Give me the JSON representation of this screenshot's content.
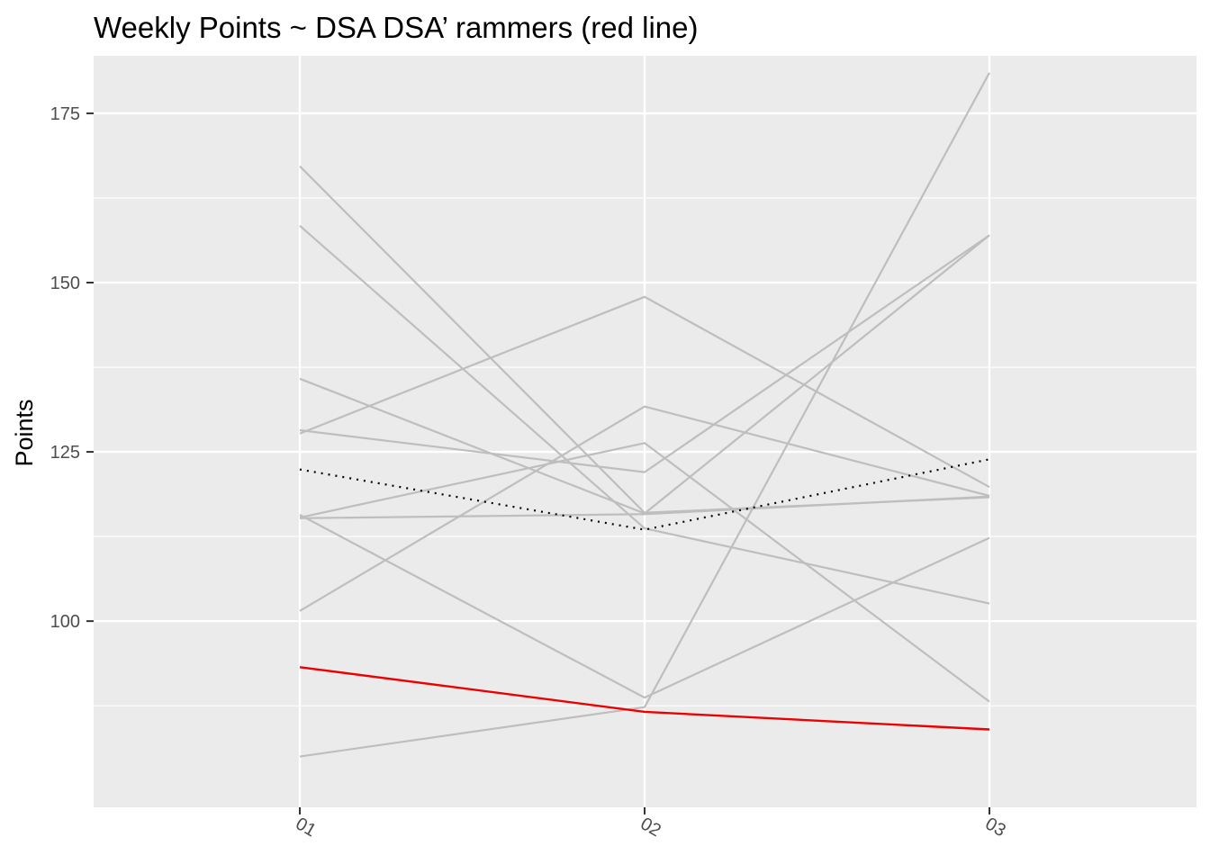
{
  "chart_data": {
    "type": "line",
    "title": "Weekly Points ~ DSA DSA’ rammers (red line)",
    "xlabel": "",
    "ylabel": "Points",
    "categories": [
      "01",
      "02",
      "03"
    ],
    "ylim": [
      72.5,
      183.5
    ],
    "y_ticks": [
      100,
      125,
      150,
      175
    ],
    "grid": true,
    "legend": "none",
    "colors": {
      "panel": "#ebebeb",
      "grid": "#ffffff",
      "other": "#bebebe",
      "highlight": "#ee0000",
      "average": "#000000"
    },
    "series": [
      {
        "values": [
          167.2,
          116.0,
          118.3
        ],
        "role": "other"
      },
      {
        "values": [
          158.4,
          113.7,
          102.6
        ],
        "role": "other"
      },
      {
        "values": [
          135.8,
          115.9,
          157.0
        ],
        "role": "other"
      },
      {
        "values": [
          127.7,
          147.9,
          119.8
        ],
        "role": "other"
      },
      {
        "values": [
          128.2,
          122.0,
          157.0
        ],
        "role": "other"
      },
      {
        "values": [
          115.3,
          126.3,
          88.1
        ],
        "role": "other"
      },
      {
        "values": [
          115.2,
          115.8,
          118.4
        ],
        "role": "other"
      },
      {
        "values": [
          101.5,
          131.7,
          118.5
        ],
        "role": "other"
      },
      {
        "values": [
          80.0,
          87.3,
          181.0
        ],
        "role": "other"
      },
      {
        "values": [
          115.7,
          88.7,
          112.3
        ],
        "role": "other"
      },
      {
        "values": [
          122.4,
          113.5,
          123.9
        ],
        "role": "average",
        "dash": "dotted"
      },
      {
        "values": [
          93.2,
          86.6,
          84.0
        ],
        "role": "highlight"
      }
    ]
  }
}
